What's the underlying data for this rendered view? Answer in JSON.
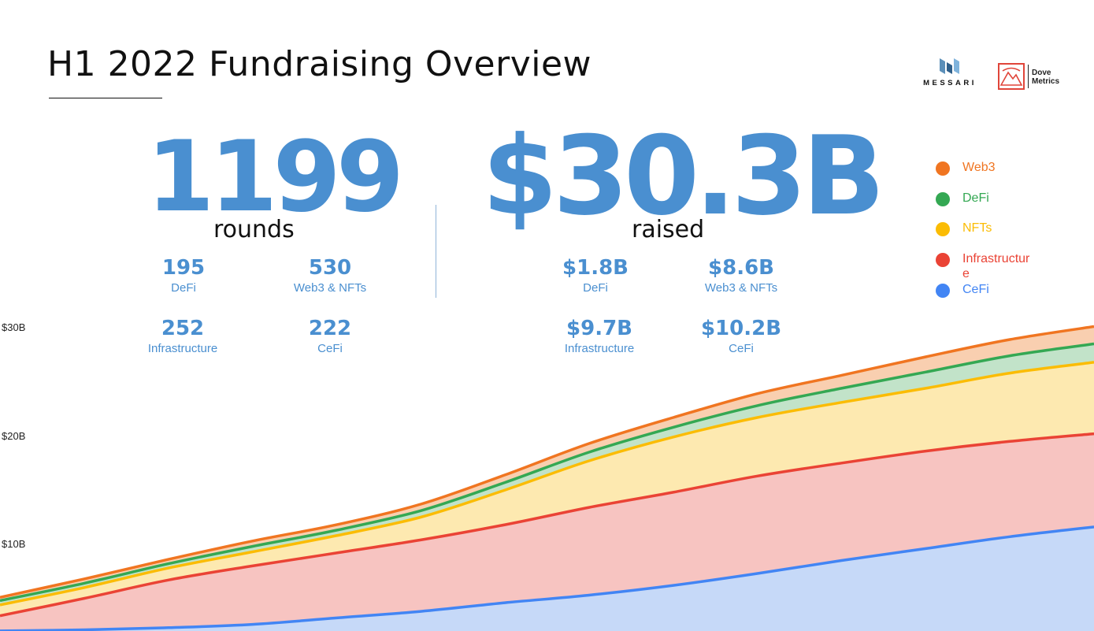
{
  "page": {
    "title": "H1 2022 Fundraising Overview",
    "logos": {
      "messari": "MESSARI",
      "dove_line1": "Dove",
      "dove_line2": "Metrics"
    }
  },
  "summary": {
    "rounds_total": "1199",
    "rounds_label": "rounds",
    "raised_total": "$30.3B",
    "raised_label": "raised",
    "rounds_breakdown": [
      {
        "value": "195",
        "label": "DeFi"
      },
      {
        "value": "530",
        "label": "Web3 & NFTs"
      },
      {
        "value": "252",
        "label": "Infrastructure"
      },
      {
        "value": "222",
        "label": "CeFi"
      }
    ],
    "raised_breakdown": [
      {
        "value": "$1.8B",
        "label": "DeFi"
      },
      {
        "value": "$8.6B",
        "label": "Web3 & NFTs"
      },
      {
        "value": "$9.7B",
        "label": "Infrastructure"
      },
      {
        "value": "$10.2B",
        "label": "CeFi"
      }
    ]
  },
  "legend": [
    {
      "label": "Web3",
      "color": "#f07521"
    },
    {
      "label": "DeFi",
      "color": "#34a853"
    },
    {
      "label": "NFTs",
      "color": "#fbbc04"
    },
    {
      "label": "Infrastructur\ne",
      "color": "#ea4335"
    },
    {
      "label": "CeFi",
      "color": "#4285f4"
    }
  ],
  "chart_data": {
    "type": "area",
    "stacked": true,
    "title": "",
    "xlabel": "",
    "ylabel": "",
    "ylim": [
      0,
      32
    ],
    "yticks": [
      {
        "value": 10,
        "label": "$10B"
      },
      {
        "value": 20,
        "label": "$20B"
      },
      {
        "value": 30,
        "label": "$30B"
      }
    ],
    "x": [
      0,
      1,
      2,
      3,
      4,
      5,
      6,
      7,
      8,
      9,
      10,
      11,
      12,
      13
    ],
    "series": [
      {
        "name": "CeFi",
        "color": "#4285f4",
        "fill": "#c6d9f8",
        "values": [
          0.3,
          0.4,
          0.6,
          0.9,
          1.5,
          2.1,
          2.9,
          3.6,
          4.5,
          5.6,
          6.8,
          7.9,
          9.0,
          9.9
        ]
      },
      {
        "name": "Infrastructure",
        "color": "#ea4335",
        "fill": "#f7c4c1",
        "values": [
          1.4,
          2.9,
          4.4,
          5.4,
          6.0,
          6.6,
          7.2,
          8.1,
          8.6,
          9.0,
          9.0,
          9.0,
          8.8,
          8.6
        ]
      },
      {
        "name": "NFTs",
        "color": "#fbbc04",
        "fill": "#fde9b0",
        "values": [
          1.0,
          1.0,
          1.1,
          1.3,
          1.6,
          2.1,
          3.2,
          4.3,
          5.1,
          5.4,
          5.6,
          5.8,
          6.3,
          6.6
        ]
      },
      {
        "name": "DeFi",
        "color": "#34a853",
        "fill": "#c2e3c9",
        "values": [
          0.4,
          0.4,
          0.4,
          0.5,
          0.5,
          0.6,
          0.7,
          0.8,
          0.9,
          1.1,
          1.3,
          1.5,
          1.6,
          1.7
        ]
      },
      {
        "name": "Web3",
        "color": "#f07521",
        "fill": "#f9cfb0",
        "values": [
          0.3,
          0.4,
          0.4,
          0.5,
          0.5,
          0.6,
          0.7,
          0.8,
          0.9,
          1.1,
          1.2,
          1.4,
          1.5,
          1.6
        ]
      }
    ]
  }
}
